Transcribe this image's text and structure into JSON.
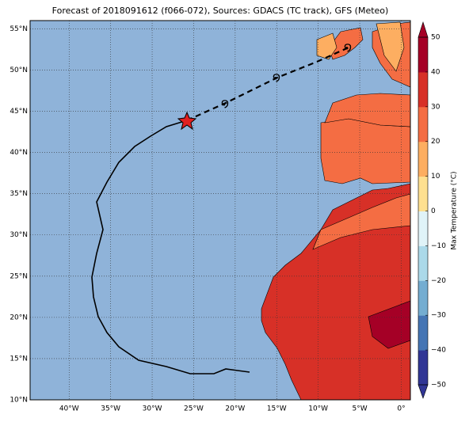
{
  "title": "Forecast of 2018091612 (f066-072), Sources: GDACS (TC track), GFS (Meteo)",
  "map": {
    "xlim": [
      -44.7,
      1.1
    ],
    "ylim": [
      10,
      56
    ],
    "xticks": [
      {
        "value": -40,
        "label": "40°W"
      },
      {
        "value": -35,
        "label": "35°W"
      },
      {
        "value": -30,
        "label": "30°W"
      },
      {
        "value": -25,
        "label": "25°W"
      },
      {
        "value": -20,
        "label": "20°W"
      },
      {
        "value": -15,
        "label": "15°W"
      },
      {
        "value": -10,
        "label": "10°W"
      },
      {
        "value": -5,
        "label": "5°W"
      },
      {
        "value": 0,
        "label": "0°"
      }
    ],
    "yticks": [
      {
        "value": 10,
        "label": "10°N"
      },
      {
        "value": 15,
        "label": "15°N"
      },
      {
        "value": 20,
        "label": "20°N"
      },
      {
        "value": 25,
        "label": "25°N"
      },
      {
        "value": 30,
        "label": "30°N"
      },
      {
        "value": 35,
        "label": "35°N"
      },
      {
        "value": 40,
        "label": "40°N"
      },
      {
        "value": 45,
        "label": "45°N"
      },
      {
        "value": 50,
        "label": "50°N"
      },
      {
        "value": 55,
        "label": "55°N"
      }
    ]
  },
  "colorbar": {
    "label": "Max Temperature (°C)",
    "lim": [
      -50,
      50
    ],
    "ticks": [
      {
        "value": -50,
        "label": "−50"
      },
      {
        "value": -40,
        "label": "−40"
      },
      {
        "value": -30,
        "label": "−30"
      },
      {
        "value": -20,
        "label": "−20"
      },
      {
        "value": -10,
        "label": "−10"
      },
      0,
      10,
      20,
      30,
      40,
      50
    ],
    "colors": [
      "#313695",
      "#4575b4",
      "#74add1",
      "#abd9e9",
      "#e0f3f8",
      "#fee090",
      "#fdae61",
      "#f46d43",
      "#d73027",
      "#a50026"
    ]
  }
}
